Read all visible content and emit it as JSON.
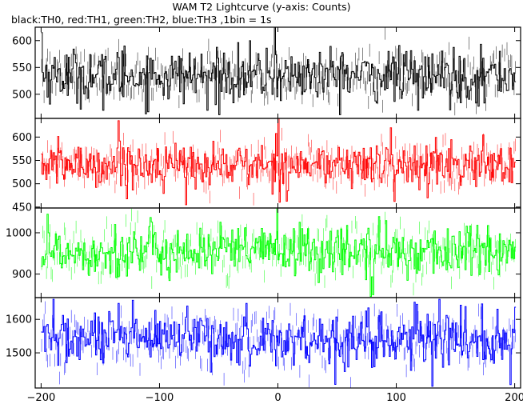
{
  "page": {
    "title": "WAM T2 Lightcurve (y-axis: Counts)",
    "subtitle": "black:TH0, red:TH1, green:TH2, blue:TH3 ,1bin = 1s"
  },
  "chart_data": [
    {
      "type": "line",
      "panel": "TH0",
      "color": "#000000",
      "xlim": [
        -205,
        205
      ],
      "ylim": [
        455,
        625
      ],
      "yticks": [
        500,
        550,
        600
      ],
      "ytick_labels": [
        "500",
        "550",
        "600"
      ],
      "mean": 535,
      "std": 25,
      "spikes": [
        {
          "x": -3,
          "y": 625
        },
        {
          "x": -200,
          "y": 615
        },
        {
          "x": -130,
          "y": 590
        }
      ],
      "dips": [
        {
          "x": -148,
          "y": 470
        },
        {
          "x": -60,
          "y": 470
        },
        {
          "x": 118,
          "y": 470
        }
      ],
      "x": {
        "start": -200,
        "end": 200,
        "step": 1
      }
    },
    {
      "type": "line",
      "panel": "TH1",
      "color": "#ff0000",
      "xlim": [
        -205,
        205
      ],
      "ylim": [
        448,
        640
      ],
      "yticks": [
        450,
        500,
        550,
        600
      ],
      "ytick_labels": [
        "450",
        "500",
        "550",
        "600"
      ],
      "mean": 540,
      "std": 24,
      "spikes": [
        {
          "x": 0,
          "y": 640
        },
        {
          "x": -135,
          "y": 635
        },
        {
          "x": 95,
          "y": 620
        }
      ],
      "dips": [
        {
          "x": -78,
          "y": 455
        },
        {
          "x": 98,
          "y": 462
        },
        {
          "x": 126,
          "y": 470
        }
      ],
      "x": {
        "start": -200,
        "end": 200,
        "step": 1
      }
    },
    {
      "type": "line",
      "panel": "TH2",
      "color": "#00ff00",
      "xlim": [
        -205,
        205
      ],
      "ylim": [
        843,
        1060
      ],
      "yticks": [
        900,
        1000
      ],
      "ytick_labels": [
        "900",
        "1000"
      ],
      "mean": 955,
      "std": 32,
      "spikes": [
        {
          "x": -1,
          "y": 1060
        },
        {
          "x": -195,
          "y": 1045
        }
      ],
      "dips": [
        {
          "x": 78,
          "y": 846
        },
        {
          "x": 80,
          "y": 850
        }
      ],
      "x": {
        "start": -200,
        "end": 200,
        "step": 1
      }
    },
    {
      "type": "line",
      "panel": "TH3",
      "color": "#0000ff",
      "xlim": [
        -205,
        205
      ],
      "ylim": [
        1395,
        1665
      ],
      "yticks": [
        1500,
        1600
      ],
      "ytick_labels": [
        "1500",
        "1600"
      ],
      "mean": 1540,
      "std": 42,
      "spikes": [
        {
          "x": -190,
          "y": 1660
        },
        {
          "x": 136,
          "y": 1660
        }
      ],
      "dips": [
        {
          "x": 130,
          "y": 1400
        },
        {
          "x": 196,
          "y": 1405
        }
      ],
      "x": {
        "start": -200,
        "end": 200,
        "step": 1
      }
    }
  ],
  "x_axis": {
    "ticks": [
      -200,
      -100,
      0,
      100,
      200
    ],
    "tick_labels": [
      "−200",
      "−100",
      "0",
      "100",
      "200"
    ]
  }
}
